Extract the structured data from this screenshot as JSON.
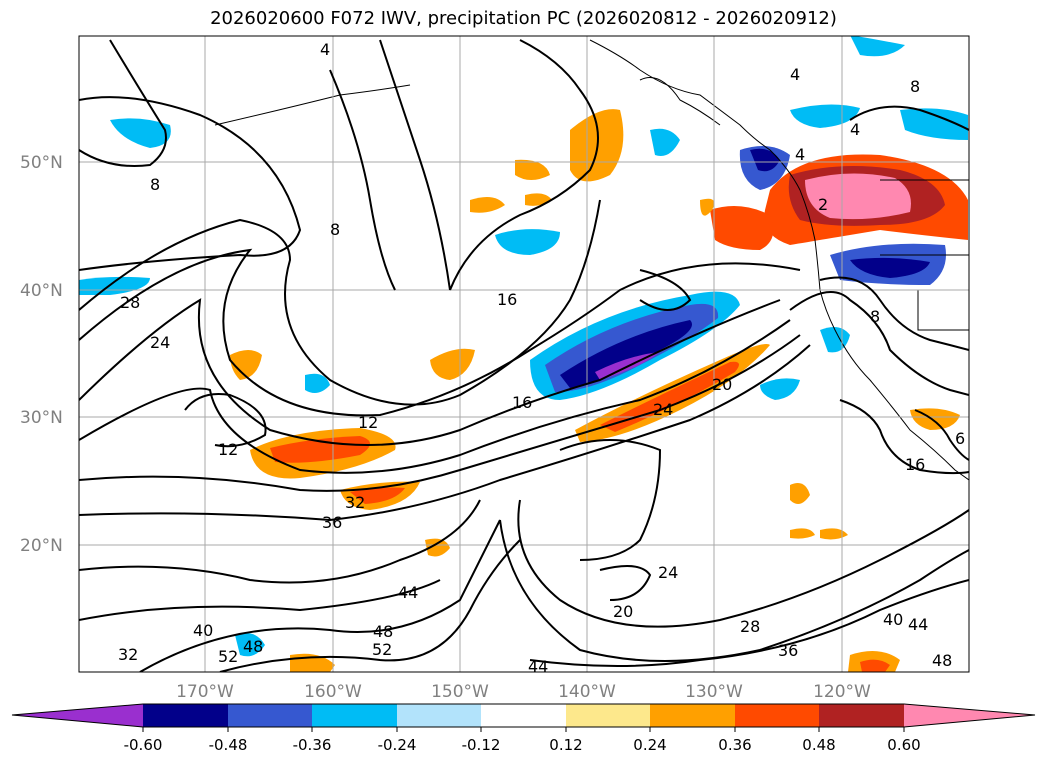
{
  "title": "2026020600 F072 IWV, precipitation PC (2026020812 - 2026020912)",
  "map": {
    "lat_labels": [
      "50°N",
      "40°N",
      "30°N",
      "20°N"
    ],
    "lon_labels": [
      "170°W",
      "160°W",
      "150°W",
      "140°W",
      "130°W",
      "120°W"
    ],
    "contour_labels": [
      "4",
      "4",
      "4",
      "4",
      "8",
      "8",
      "8",
      "8",
      "12",
      "12",
      "16",
      "16",
      "16",
      "20",
      "20",
      "24",
      "24",
      "24",
      "28",
      "28",
      "32",
      "32",
      "36",
      "36",
      "40",
      "40",
      "44",
      "44",
      "44",
      "48",
      "48",
      "48",
      "52",
      "52",
      "6",
      "2"
    ]
  },
  "colorbar": {
    "ticks": [
      "-0.60",
      "-0.48",
      "-0.36",
      "-0.24",
      "-0.12",
      "0.12",
      "0.24",
      "0.36",
      "0.48",
      "0.60"
    ],
    "colors": [
      "#9a2fcf",
      "#02008a",
      "#3658d0",
      "#00bcf5",
      "#b2e3fb",
      "#ffffff",
      "#fde88c",
      "#ffa000",
      "#ff4a00",
      "#b02222",
      "#ff88b0"
    ]
  },
  "colors": {
    "land_outline": "#000000",
    "grid": "#a8a8a8",
    "axis_label": "#808080"
  }
}
